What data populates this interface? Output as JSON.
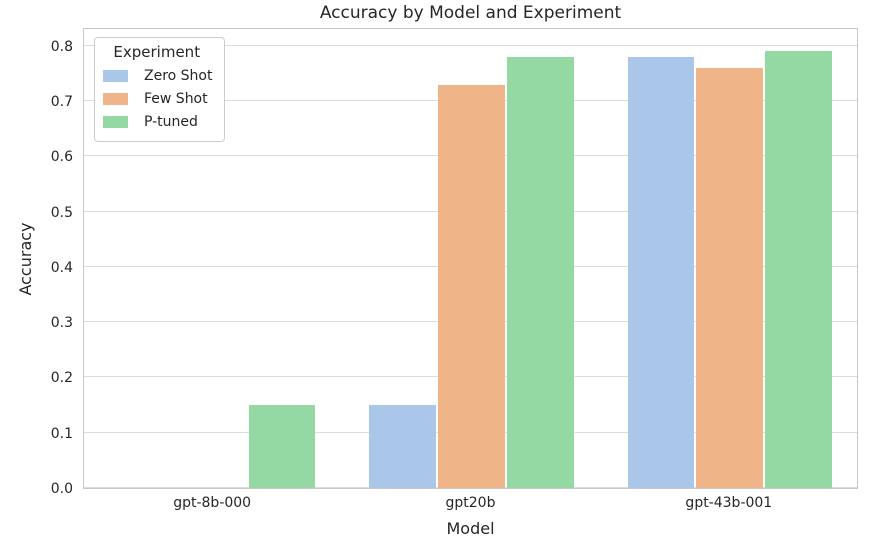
{
  "chart_data": {
    "type": "bar",
    "title": "Accuracy by Model and Experiment",
    "xlabel": "Model",
    "ylabel": "Accuracy",
    "categories": [
      "gpt-8b-000",
      "gpt20b",
      "gpt-43b-001"
    ],
    "series": [
      {
        "name": "Zero Shot",
        "color": "#aac7ea",
        "values": [
          0.0,
          0.15,
          0.78
        ]
      },
      {
        "name": "Few Shot",
        "color": "#f0b489",
        "values": [
          0.0,
          0.73,
          0.76
        ]
      },
      {
        "name": "P-tuned",
        "color": "#94d9a4",
        "values": [
          0.15,
          0.78,
          0.79
        ]
      }
    ],
    "legend": {
      "title": "Experiment",
      "position": "upper-left"
    },
    "yticks": [
      0.0,
      0.1,
      0.2,
      0.3,
      0.4,
      0.5,
      0.6,
      0.7,
      0.8
    ],
    "ylim": [
      0,
      0.834
    ],
    "grid": true,
    "colors": {
      "grid": "#dcdcdc",
      "spine": "#c8c8c8",
      "text": "#262626",
      "background": "#ffffff"
    }
  }
}
